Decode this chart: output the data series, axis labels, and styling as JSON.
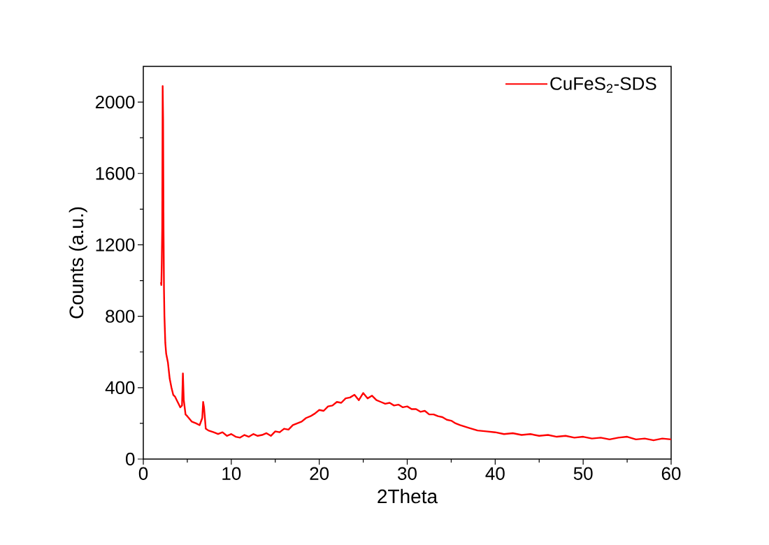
{
  "chart_data": {
    "type": "line",
    "xlabel": "2Theta",
    "ylabel": "Counts (a.u.)",
    "xlim": [
      0,
      60
    ],
    "ylim": [
      0,
      2200
    ],
    "xticks": [
      0,
      10,
      20,
      30,
      40,
      50,
      60
    ],
    "yticks": [
      0,
      400,
      800,
      1200,
      1600,
      2000
    ],
    "grid": false,
    "legend": "top right",
    "marker": "none",
    "line_style": "solid",
    "x": [
      2.0,
      2.05,
      2.1,
      2.15,
      2.2,
      2.25,
      2.3,
      2.35,
      2.4,
      2.5,
      2.6,
      2.8,
      3.0,
      3.2,
      3.4,
      3.6,
      3.8,
      4.0,
      4.2,
      4.4,
      4.5,
      4.6,
      4.8,
      5.0,
      5.5,
      6.0,
      6.4,
      6.7,
      6.8,
      6.9,
      7.1,
      7.4,
      8.0,
      8.5,
      9.0,
      9.5,
      10,
      10.5,
      11,
      11.5,
      12,
      12.5,
      13,
      13.5,
      14,
      14.5,
      15,
      15.5,
      16,
      16.5,
      17,
      17.5,
      18,
      18.5,
      19,
      19.5,
      20,
      20.5,
      21,
      21.5,
      22,
      22.5,
      23,
      23.5,
      24,
      24.5,
      25,
      25.5,
      26,
      26.5,
      27,
      27.5,
      28,
      28.5,
      29,
      29.5,
      30,
      30.5,
      31,
      31.5,
      32,
      32.5,
      33,
      33.5,
      34,
      34.5,
      35,
      35.5,
      36,
      37,
      38,
      39,
      40,
      41,
      42,
      43,
      44,
      45,
      46,
      47,
      48,
      49,
      50,
      51,
      52,
      53,
      54,
      55,
      56,
      57,
      58,
      59,
      60
    ],
    "series": [
      {
        "name": "CuFeS$_{2}$-SDS",
        "color": "#ff0000",
        "values": [
          990,
          975,
          1100,
          1300,
          2090,
          1900,
          1280,
          950,
          800,
          650,
          590,
          540,
          450,
          400,
          360,
          350,
          330,
          310,
          290,
          300,
          480,
          330,
          250,
          240,
          210,
          200,
          190,
          230,
          320,
          290,
          170,
          160,
          150,
          140,
          150,
          130,
          140,
          125,
          120,
          135,
          125,
          140,
          130,
          135,
          145,
          130,
          155,
          150,
          170,
          165,
          190,
          200,
          210,
          230,
          240,
          255,
          275,
          270,
          295,
          300,
          320,
          315,
          340,
          345,
          360,
          330,
          370,
          340,
          355,
          330,
          320,
          310,
          315,
          300,
          305,
          290,
          295,
          280,
          280,
          265,
          270,
          250,
          250,
          240,
          235,
          220,
          215,
          200,
          190,
          175,
          160,
          155,
          150,
          140,
          145,
          135,
          140,
          130,
          135,
          125,
          130,
          120,
          125,
          115,
          120,
          110,
          120,
          125,
          110,
          115,
          105,
          115,
          110
        ]
      }
    ]
  }
}
